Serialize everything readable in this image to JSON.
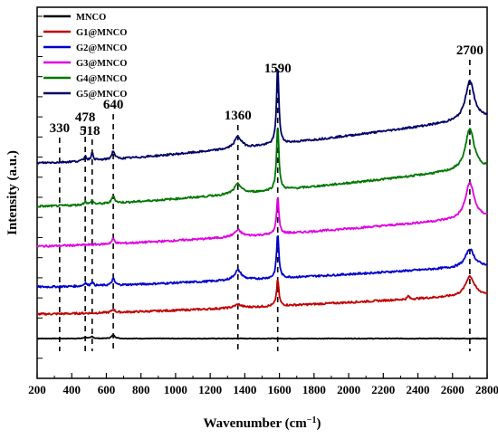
{
  "chart_data": {
    "type": "line",
    "xlabel": "Wavenumber (cm",
    "xlabel_sup": "−1",
    "xlabel_end": ")",
    "ylabel": "Intensity (a.u.)",
    "xlim": [
      200,
      2800
    ],
    "x_ticks": [
      "200",
      "400",
      "600",
      "800",
      "1000",
      "1200",
      "1400",
      "1600",
      "1800",
      "2000",
      "2200",
      "2400",
      "2600",
      "2800"
    ],
    "legend_position": "top-left",
    "y_ticks_labeled": false,
    "series": [
      {
        "name": "MNCO",
        "color": "#000000",
        "offset": 0,
        "baseline": [
          0,
          0
        ],
        "scale": 0.35,
        "peaks": [
          [
            478,
            0.25,
            9
          ],
          [
            518,
            0.35,
            9
          ],
          [
            640,
            0.6,
            12
          ]
        ]
      },
      {
        "name": "G1@MNCO",
        "color": "#c00000",
        "offset": 1,
        "baseline": [
          0,
          1.2
        ],
        "scale": 1.0,
        "peaks": [
          [
            640,
            0.2,
            10
          ],
          [
            1360,
            0.2,
            25
          ],
          [
            1590,
            1.6,
            8
          ],
          [
            2345,
            0.2,
            6
          ],
          [
            2700,
            1.2,
            30
          ]
        ]
      },
      {
        "name": "G2@MNCO",
        "color": "#0000cc",
        "offset": 2,
        "baseline": [
          0,
          1.3
        ],
        "scale": 1.0,
        "peaks": [
          [
            478,
            0.2,
            8
          ],
          [
            518,
            0.25,
            8
          ],
          [
            640,
            0.4,
            10
          ],
          [
            1360,
            0.6,
            25
          ],
          [
            1590,
            2.7,
            8
          ],
          [
            2700,
            1.1,
            30
          ]
        ]
      },
      {
        "name": "G3@MNCO",
        "color": "#e000e0",
        "offset": 3,
        "baseline": [
          0,
          1.8
        ],
        "scale": 1.0,
        "peaks": [
          [
            640,
            0.3,
            10
          ],
          [
            1360,
            0.4,
            25
          ],
          [
            1590,
            2.3,
            8
          ],
          [
            2700,
            2.2,
            30
          ]
        ]
      },
      {
        "name": "G4@MNCO",
        "color": "#007700",
        "offset": 4,
        "baseline": [
          0,
          2.4
        ],
        "scale": 1.0,
        "peaks": [
          [
            478,
            0.2,
            8
          ],
          [
            518,
            0.25,
            8
          ],
          [
            640,
            0.45,
            10
          ],
          [
            1360,
            0.6,
            25
          ],
          [
            1590,
            4.0,
            8
          ],
          [
            2700,
            2.5,
            30
          ]
        ]
      },
      {
        "name": "G5@MNCO",
        "color": "#000066",
        "offset": 5,
        "baseline": [
          0,
          2.8
        ],
        "scale": 1.0,
        "peaks": [
          [
            478,
            0.3,
            8
          ],
          [
            518,
            0.45,
            8
          ],
          [
            640,
            0.5,
            10
          ],
          [
            1360,
            0.7,
            25
          ],
          [
            1590,
            4.8,
            8
          ],
          [
            2700,
            2.4,
            30
          ]
        ]
      }
    ],
    "annotations": [
      {
        "label": "330",
        "x": 330
      },
      {
        "label": "478",
        "x": 478
      },
      {
        "label": "518",
        "x": 518
      },
      {
        "label": "640",
        "x": 640
      },
      {
        "label": "1360",
        "x": 1360
      },
      {
        "label": "1590",
        "x": 1590
      },
      {
        "label": "2700",
        "x": 2700
      }
    ]
  }
}
